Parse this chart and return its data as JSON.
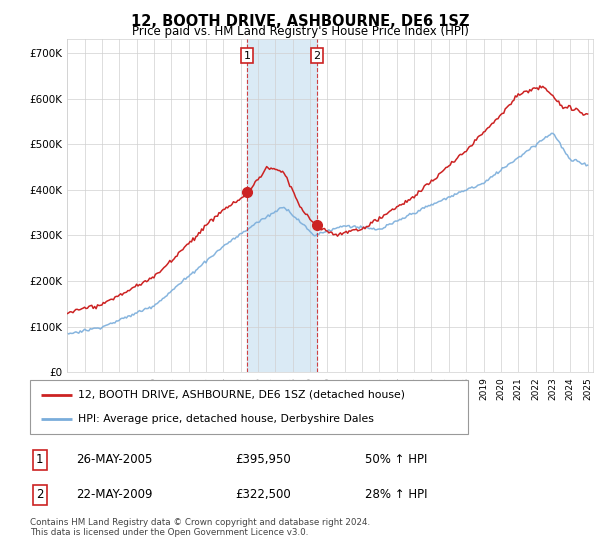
{
  "title": "12, BOOTH DRIVE, ASHBOURNE, DE6 1SZ",
  "subtitle": "Price paid vs. HM Land Registry's House Price Index (HPI)",
  "hpi_label": "HPI: Average price, detached house, Derbyshire Dales",
  "price_label": "12, BOOTH DRIVE, ASHBOURNE, DE6 1SZ (detached house)",
  "transaction1": {
    "label": "1",
    "date": "26-MAY-2005",
    "price": "£395,950",
    "change": "50% ↑ HPI"
  },
  "transaction2": {
    "label": "2",
    "date": "22-MAY-2009",
    "price": "£322,500",
    "change": "28% ↑ HPI"
  },
  "footer": "Contains HM Land Registry data © Crown copyright and database right 2024.\nThis data is licensed under the Open Government Licence v3.0.",
  "price_color": "#cc2222",
  "hpi_color": "#7aaddb",
  "vline_color": "#cc2222",
  "span_color": "#daeaf5",
  "ylim": [
    0,
    730000
  ],
  "yticks": [
    0,
    100000,
    200000,
    300000,
    400000,
    500000,
    600000,
    700000
  ],
  "xlim_start": 1995,
  "xlim_end": 2025.3,
  "transaction1_year": 2005.38,
  "transaction2_year": 2009.38,
  "transaction1_price": 395950,
  "transaction2_price": 322500,
  "bg_color": "#f5f5f5"
}
